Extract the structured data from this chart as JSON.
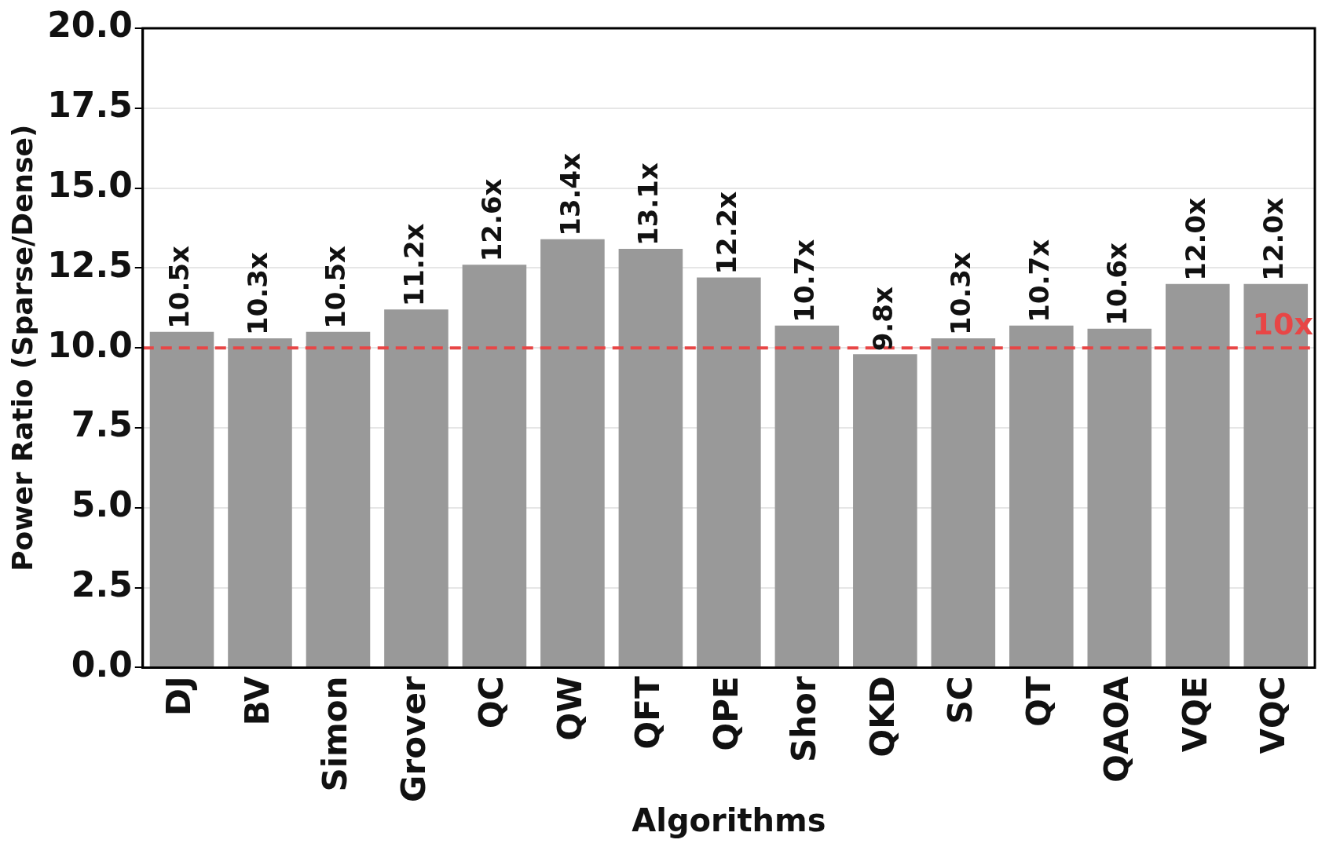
{
  "chart_data": {
    "type": "bar",
    "xlabel": "Algorithms",
    "ylabel": "Power Ratio (Sparse/Dense)",
    "categories": [
      "DJ",
      "BV",
      "Simon",
      "Grover",
      "QC",
      "QW",
      "QFT",
      "QPE",
      "Shor",
      "QKD",
      "SC",
      "QT",
      "QAOA",
      "VQE",
      "VQC"
    ],
    "values": [
      10.5,
      10.3,
      10.5,
      11.2,
      12.6,
      13.4,
      13.1,
      12.2,
      10.7,
      9.8,
      10.3,
      10.7,
      10.6,
      12.0,
      12.0
    ],
    "value_labels": [
      "10.5x",
      "10.3x",
      "10.5x",
      "11.2x",
      "12.6x",
      "13.4x",
      "13.1x",
      "12.2x",
      "10.7x",
      "9.8x",
      "10.3x",
      "10.7x",
      "10.6x",
      "12.0x",
      "12.0x"
    ],
    "color": "#999999",
    "ylim": [
      0,
      20
    ],
    "yticks": [
      {
        "value": 0,
        "label": "0.0"
      },
      2.5,
      {
        "value": 5,
        "label": "5.0"
      },
      7.5,
      {
        "value": 10,
        "label": "10.0"
      },
      12.5,
      {
        "value": 15,
        "label": "15.0"
      },
      17.5,
      {
        "value": 20,
        "label": "20.0"
      }
    ],
    "grid": "y",
    "ref_lines": [
      {
        "axis": "y",
        "value": 10,
        "label": "10x",
        "color": "#e84646",
        "line_style": "dashed"
      }
    ]
  }
}
